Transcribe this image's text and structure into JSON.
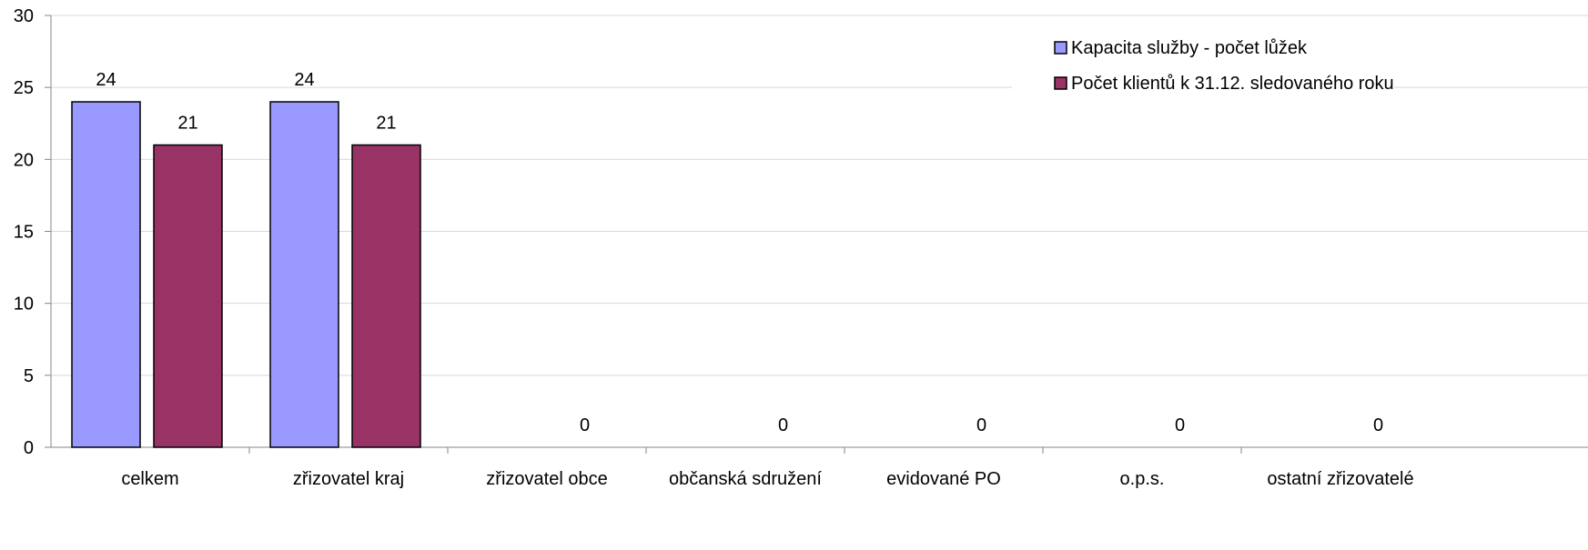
{
  "chart_data": {
    "type": "bar",
    "title": "",
    "xlabel": "",
    "ylabel": "",
    "ylim": [
      0,
      30
    ],
    "yticks": [
      0,
      5,
      10,
      15,
      20,
      25,
      30
    ],
    "grid": true,
    "legend_position": "top-right",
    "categories": [
      "celkem",
      "zřizovatel kraj",
      "zřizovatel obce",
      "občanská sdružení",
      "evidované PO",
      "o.p.s.",
      "ostatní zřizovatelé"
    ],
    "series": [
      {
        "name": "Kapacita služby - počet lůžek",
        "color": "#9999ff",
        "values": [
          24,
          24,
          null,
          null,
          null,
          null,
          null
        ],
        "labels": [
          "24",
          "24",
          "",
          "",
          "",
          "",
          ""
        ]
      },
      {
        "name": "Počet klientů k 31.12. sledovaného roku",
        "color": "#993366",
        "values": [
          21,
          21,
          0,
          0,
          0,
          0,
          0
        ],
        "labels": [
          "21",
          "21",
          "0",
          "0",
          "0",
          "0",
          "0"
        ]
      }
    ]
  }
}
